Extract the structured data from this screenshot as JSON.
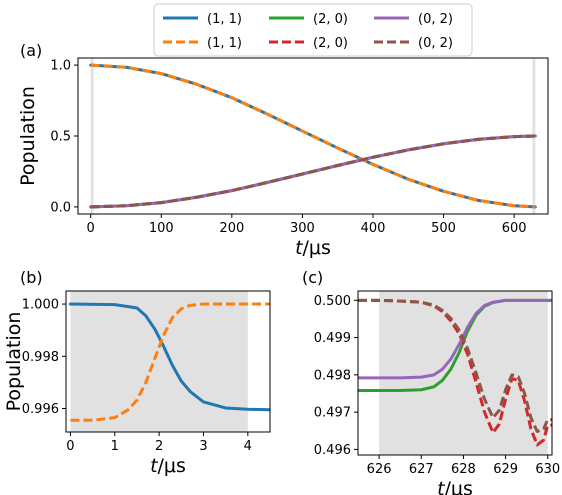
{
  "legend": [
    {
      "label": "(1, 1)",
      "color": "#1f77b4",
      "style": "solid"
    },
    {
      "label": "(1, 1)",
      "color": "#ff7f0e",
      "style": "dashed"
    },
    {
      "label": "(2, 0)",
      "color": "#2ca02c",
      "style": "solid"
    },
    {
      "label": "(2, 0)",
      "color": "#d62728",
      "style": "dashed"
    },
    {
      "label": "(0, 2)",
      "color": "#9467bd",
      "style": "solid"
    },
    {
      "label": "(0, 2)",
      "color": "#8c564b",
      "style": "dashed"
    }
  ],
  "chart_data": [
    {
      "panel": "(a)",
      "type": "line",
      "ylabel": "Population",
      "xlabel_italic": "t",
      "xlabel_unit": "/μs",
      "xlim": [
        -18,
        648
      ],
      "ylim": [
        -0.05,
        1.05
      ],
      "xticks": [
        0,
        100,
        200,
        300,
        400,
        500,
        600
      ],
      "yticks": [
        0.0,
        0.5,
        1.0
      ],
      "ytick_labels": [
        "0.0",
        "0.5",
        "1.0"
      ],
      "shaded_regions": [
        [
          0,
          4
        ],
        [
          626,
          630
        ]
      ],
      "grid": false,
      "series": [
        {
          "legend": 0,
          "x": [
            0,
            50,
            100,
            150,
            200,
            250,
            300,
            350,
            400,
            450,
            500,
            550,
            600,
            630
          ],
          "y": [
            1.0,
            0.985,
            0.94,
            0.865,
            0.77,
            0.655,
            0.535,
            0.415,
            0.3,
            0.195,
            0.11,
            0.045,
            0.008,
            0.0
          ]
        },
        {
          "legend": 1,
          "x": [
            0,
            50,
            100,
            150,
            200,
            250,
            300,
            350,
            400,
            450,
            500,
            550,
            600,
            630
          ],
          "y": [
            1.0,
            0.985,
            0.94,
            0.865,
            0.77,
            0.655,
            0.535,
            0.415,
            0.3,
            0.195,
            0.11,
            0.045,
            0.008,
            0.0
          ]
        },
        {
          "legend": 2,
          "x": [
            0,
            50,
            100,
            150,
            200,
            250,
            300,
            350,
            400,
            450,
            500,
            550,
            600,
            630
          ],
          "y": [
            0.0,
            0.008,
            0.03,
            0.068,
            0.115,
            0.172,
            0.232,
            0.292,
            0.35,
            0.402,
            0.445,
            0.477,
            0.496,
            0.5
          ]
        },
        {
          "legend": 3,
          "x": [
            0,
            50,
            100,
            150,
            200,
            250,
            300,
            350,
            400,
            450,
            500,
            550,
            600,
            630
          ],
          "y": [
            0.0,
            0.008,
            0.03,
            0.068,
            0.115,
            0.172,
            0.232,
            0.292,
            0.35,
            0.402,
            0.445,
            0.477,
            0.496,
            0.5
          ]
        },
        {
          "legend": 4,
          "x": [
            0,
            50,
            100,
            150,
            200,
            250,
            300,
            350,
            400,
            450,
            500,
            550,
            600,
            630
          ],
          "y": [
            0.0,
            0.008,
            0.03,
            0.068,
            0.115,
            0.172,
            0.232,
            0.292,
            0.35,
            0.402,
            0.445,
            0.477,
            0.496,
            0.5
          ]
        },
        {
          "legend": 5,
          "x": [
            0,
            50,
            100,
            150,
            200,
            250,
            300,
            350,
            400,
            450,
            500,
            550,
            600,
            630
          ],
          "y": [
            0.0,
            0.008,
            0.03,
            0.068,
            0.115,
            0.172,
            0.232,
            0.292,
            0.35,
            0.402,
            0.445,
            0.477,
            0.496,
            0.5
          ]
        }
      ]
    },
    {
      "panel": "(b)",
      "type": "line",
      "ylabel": "Population",
      "xlabel_italic": "t",
      "xlabel_unit": "/μs",
      "xlim": [
        -0.1,
        4.5
      ],
      "ylim": [
        0.9951,
        1.0005
      ],
      "xticks": [
        0,
        1,
        2,
        3,
        4
      ],
      "yticks": [
        0.996,
        0.998,
        1.0
      ],
      "ytick_labels": [
        "0.996",
        "0.998",
        "1.000"
      ],
      "shaded_regions": [
        [
          0,
          4
        ]
      ],
      "grid": false,
      "series": [
        {
          "legend": 0,
          "x": [
            0,
            1.0,
            1.5,
            1.7,
            1.9,
            2.0,
            2.1,
            2.3,
            2.5,
            2.7,
            3.0,
            3.5,
            4.0,
            4.5
          ],
          "y": [
            1.0,
            0.99998,
            0.99985,
            0.99955,
            0.99905,
            0.99872,
            0.99838,
            0.99765,
            0.99705,
            0.99665,
            0.99625,
            0.99602,
            0.99597,
            0.99595
          ]
        },
        {
          "legend": 1,
          "x": [
            0,
            0.5,
            1.0,
            1.3,
            1.5,
            1.7,
            1.9,
            2.0,
            2.1,
            2.3,
            2.5,
            2.7,
            3.0,
            3.5,
            4.0,
            4.5
          ],
          "y": [
            0.99555,
            0.99555,
            0.99565,
            0.99595,
            0.99632,
            0.997,
            0.9979,
            0.99835,
            0.9988,
            0.99948,
            0.99982,
            0.99995,
            1.0,
            1.0,
            1.0,
            1.0
          ]
        }
      ]
    },
    {
      "panel": "(c)",
      "type": "line",
      "xlabel_italic": "t",
      "xlabel_unit": "/μs",
      "xlim": [
        625.5,
        630.1
      ],
      "ylim": [
        0.49585,
        0.50025
      ],
      "xticks": [
        626,
        627,
        628,
        629,
        630
      ],
      "yticks": [
        0.496,
        0.497,
        0.498,
        0.499,
        0.5
      ],
      "ytick_labels": [
        "0.496",
        "0.497",
        "0.498",
        "0.499",
        "0.500"
      ],
      "shaded_regions": [
        [
          626,
          630
        ]
      ],
      "grid": false,
      "series": [
        {
          "legend": 2,
          "x": [
            625.5,
            626.5,
            627.0,
            627.3,
            627.5,
            627.7,
            627.9,
            628.0,
            628.1,
            628.3,
            628.5,
            628.7,
            629.0,
            629.5,
            630.1
          ],
          "y": [
            0.49758,
            0.49758,
            0.4976,
            0.49768,
            0.49785,
            0.49815,
            0.4986,
            0.4989,
            0.49918,
            0.4996,
            0.49984,
            0.49994,
            0.5,
            0.5,
            0.5
          ]
        },
        {
          "legend": 3,
          "x": [
            625.5,
            626.0,
            626.5,
            627.0,
            627.3,
            627.5,
            627.7,
            627.9,
            628.1,
            628.3,
            628.5,
            628.7,
            628.85,
            629.0,
            629.15,
            629.3,
            629.45,
            629.6,
            629.75,
            629.9,
            630.0,
            630.1
          ],
          "y": [
            0.5,
            0.5,
            0.49998,
            0.49995,
            0.49985,
            0.4997,
            0.49945,
            0.4991,
            0.49855,
            0.4978,
            0.497,
            0.49645,
            0.49668,
            0.49735,
            0.4979,
            0.49785,
            0.4973,
            0.49655,
            0.49612,
            0.49625,
            0.49665,
            0.49665
          ]
        },
        {
          "legend": 4,
          "x": [
            625.5,
            626.5,
            627.0,
            627.3,
            627.5,
            627.7,
            627.9,
            628.0,
            628.1,
            628.3,
            628.5,
            628.7,
            629.0,
            629.5,
            630.1
          ],
          "y": [
            0.49792,
            0.49792,
            0.49794,
            0.498,
            0.49815,
            0.49842,
            0.49882,
            0.49905,
            0.49928,
            0.49965,
            0.49986,
            0.49995,
            0.5,
            0.5,
            0.5
          ]
        },
        {
          "legend": 5,
          "x": [
            625.5,
            626.0,
            626.5,
            627.0,
            627.3,
            627.5,
            627.7,
            627.9,
            628.1,
            628.3,
            628.5,
            628.7,
            628.85,
            629.0,
            629.15,
            629.3,
            629.45,
            629.6,
            629.75,
            629.9,
            630.0,
            630.1
          ],
          "y": [
            0.5,
            0.5,
            0.49998,
            0.49995,
            0.49987,
            0.49973,
            0.49952,
            0.4992,
            0.4987,
            0.49805,
            0.49735,
            0.49685,
            0.49705,
            0.4976,
            0.498,
            0.49795,
            0.4975,
            0.49685,
            0.49648,
            0.49655,
            0.4968,
            0.4968
          ]
        }
      ]
    }
  ]
}
